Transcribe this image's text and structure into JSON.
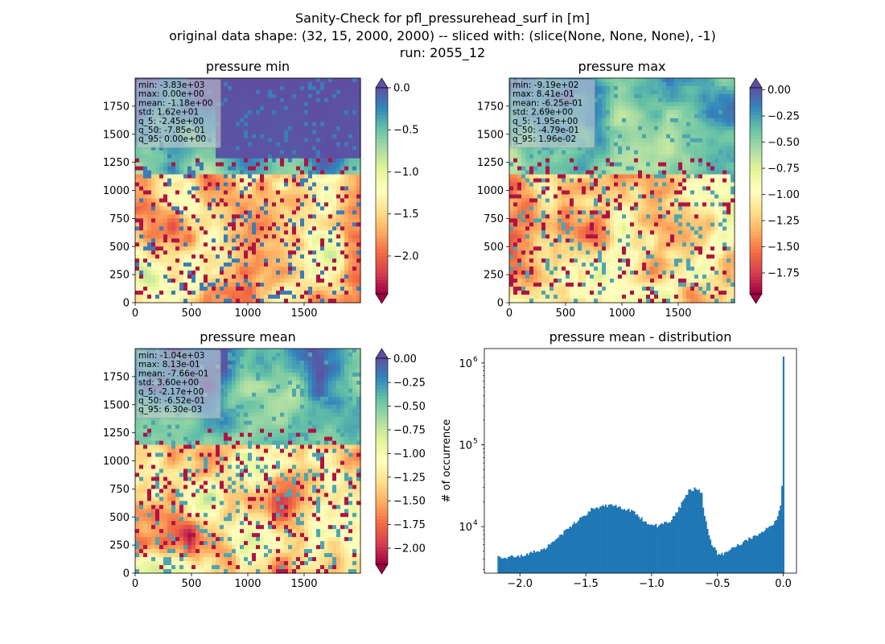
{
  "suptitle": {
    "line1": "Sanity-Check for pfl_pressurehead_surf in [m]",
    "line2": "original data shape: (32, 15, 2000, 2000) -- sliced with: (slice(None, None, None), -1)",
    "line3": "run: 2055_12"
  },
  "chart_data": [
    {
      "type": "heatmap",
      "title": "pressure min",
      "xlim": [
        0,
        2000
      ],
      "ylim": [
        0,
        2000
      ],
      "xticks": [
        0,
        500,
        1000,
        1500
      ],
      "yticks": [
        0,
        250,
        500,
        750,
        1000,
        1250,
        1500,
        1750
      ],
      "colormap": "Spectral",
      "colorbar": {
        "range": [
          -2.45,
          0.0
        ],
        "ticks": [
          "0.0",
          "−0.5",
          "−1.0",
          "−1.5",
          "−2.0"
        ],
        "tick_values": [
          0.0,
          -0.5,
          -1.0,
          -1.5,
          -2.0
        ],
        "extend": "both"
      },
      "stats": [
        "min: -3.83e+03",
        "max: 0.00e+00",
        "mean: -1.18e+00",
        "std: 1.62e+01",
        "q_5: -2.45e+00",
        "q_50: -7.85e-01",
        "q_95: 0.00e+00"
      ]
    },
    {
      "type": "heatmap",
      "title": "pressure max",
      "xlim": [
        0,
        2000
      ],
      "ylim": [
        0,
        2000
      ],
      "xticks": [
        0,
        500,
        1000,
        1500
      ],
      "yticks": [
        0,
        250,
        500,
        750,
        1000,
        1250,
        1500,
        1750
      ],
      "colormap": "Spectral",
      "colorbar": {
        "range": [
          -1.95,
          0.0196
        ],
        "ticks": [
          "0.00",
          "−0.25",
          "−0.50",
          "−0.75",
          "−1.00",
          "−1.25",
          "−1.50",
          "−1.75"
        ],
        "tick_values": [
          0.0,
          -0.25,
          -0.5,
          -0.75,
          -1.0,
          -1.25,
          -1.5,
          -1.75
        ],
        "extend": "both"
      },
      "stats": [
        "min: -9.19e+02",
        "max: 8.41e-01",
        "mean: -6.25e-01",
        "std: 2.69e+00",
        "q_5: -1.95e+00",
        "q_50: -4.79e-01",
        "q_95: 1.96e-02"
      ]
    },
    {
      "type": "heatmap",
      "title": "pressure mean",
      "xlim": [
        0,
        2000
      ],
      "ylim": [
        0,
        2000
      ],
      "xticks": [
        0,
        500,
        1000,
        1500
      ],
      "yticks": [
        0,
        250,
        500,
        750,
        1000,
        1250,
        1500,
        1750
      ],
      "colormap": "Spectral",
      "colorbar": {
        "range": [
          -2.17,
          0.0063
        ],
        "ticks": [
          "0.00",
          "−0.25",
          "−0.50",
          "−0.75",
          "−1.00",
          "−1.25",
          "−1.50",
          "−1.75",
          "−2.00"
        ],
        "tick_values": [
          0.0,
          -0.25,
          -0.5,
          -0.75,
          -1.0,
          -1.25,
          -1.5,
          -1.75,
          -2.0
        ],
        "extend": "both"
      },
      "stats": [
        "min: -1.04e+03",
        "max: 8.13e-01",
        "mean: -7.66e-01",
        "std: 3.60e+00",
        "q_5: -2.17e+00",
        "q_50: -6.52e-01",
        "q_95: 6.30e-03"
      ]
    },
    {
      "type": "bar",
      "title": "pressure mean - distribution",
      "ylabel": "# of occurrence",
      "xlabel": "",
      "yscale": "log",
      "xlim": [
        -2.27,
        0.1
      ],
      "ylim": [
        2700,
        1500000
      ],
      "xticks": [
        -2.0,
        -1.5,
        -1.0,
        -0.5,
        0.0
      ],
      "xtick_labels": [
        "−2.0",
        "−1.5",
        "−1.0",
        "−0.5",
        "0.0"
      ],
      "ytick_labels": [
        "10",
        "10",
        "10"
      ],
      "ytick_exponents": [
        "4",
        "5",
        "6"
      ],
      "ytick_values": [
        10000,
        100000,
        1000000
      ],
      "color": "#1f77b4",
      "bin_range": [
        -2.17,
        0.0063
      ],
      "profile_x": [
        -2.17,
        -2.0,
        -1.8,
        -1.6,
        -1.45,
        -1.3,
        -1.15,
        -1.05,
        -0.95,
        -0.85,
        -0.78,
        -0.72,
        -0.67,
        -0.62,
        -0.6,
        -0.55,
        -0.5,
        -0.45,
        -0.4,
        -0.3,
        -0.2,
        -0.1,
        -0.05,
        -0.02,
        -0.01,
        0.0
      ],
      "profile_y": [
        4200,
        4300,
        5500,
        10500,
        16500,
        18500,
        15500,
        11500,
        10200,
        12000,
        18000,
        27000,
        29500,
        26000,
        13500,
        6500,
        4700,
        4700,
        5200,
        6500,
        8000,
        10000,
        12000,
        18000,
        30000,
        1200000
      ]
    }
  ]
}
